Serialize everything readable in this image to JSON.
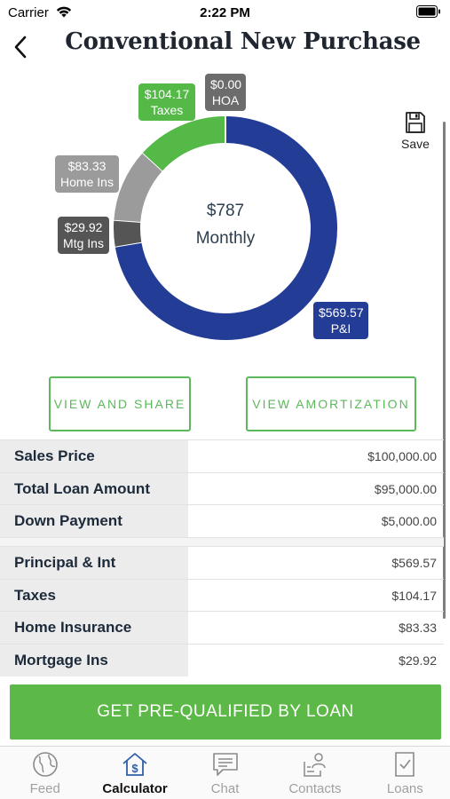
{
  "status_bar": {
    "carrier": "Carrier",
    "time": "2:22 PM"
  },
  "header": {
    "title": "Conventional New Purchase"
  },
  "chart_data": {
    "type": "pie",
    "categories": [
      "P&I",
      "Mtg Ins",
      "Home Ins",
      "Taxes",
      "HOA"
    ],
    "values": [
      569.57,
      29.92,
      83.33,
      104.17,
      0.0
    ],
    "colors": [
      "#233c96",
      "#555555",
      "#9b9b9b",
      "#55b948",
      "#6c6c6c"
    ],
    "center": {
      "amount": "$787",
      "label": "Monthly"
    }
  },
  "callouts": {
    "taxes": {
      "value": "$104.17",
      "label": "Taxes"
    },
    "hoa": {
      "value": "$0.00",
      "label": "HOA"
    },
    "home_ins": {
      "value": "$83.33",
      "label": "Home Ins"
    },
    "mtg_ins": {
      "value": "$29.92",
      "label": "Mtg Ins"
    },
    "pi": {
      "value": "$569.57",
      "label": "P&I"
    }
  },
  "save": {
    "label": "Save",
    "icon": "floppy-disk-icon"
  },
  "buttons": {
    "share": "VIEW AND SHARE",
    "amortization": "VIEW AMORTIZATION"
  },
  "loan_summary": [
    {
      "label": "Sales Price",
      "value": "$100,000.00"
    },
    {
      "label": "Total Loan Amount",
      "value": "$95,000.00"
    },
    {
      "label": "Down Payment",
      "value": "$5,000.00"
    }
  ],
  "payment_breakdown": [
    {
      "label": "Principal & Int",
      "value": "$569.57"
    },
    {
      "label": "Taxes",
      "value": "$104.17"
    },
    {
      "label": "Home Insurance",
      "value": "$83.33"
    },
    {
      "label": "Mortgage Ins",
      "value": "$29.92"
    }
  ],
  "cta": {
    "label": "GET PRE-QUALIFIED BY LOAN"
  },
  "tabs": [
    {
      "label": "Feed",
      "icon": "globe-icon"
    },
    {
      "label": "Calculator",
      "icon": "home-dollar-icon",
      "active": true
    },
    {
      "label": "Chat",
      "icon": "chat-icon"
    },
    {
      "label": "Contacts",
      "icon": "contacts-icon"
    },
    {
      "label": "Loans",
      "icon": "document-check-icon"
    }
  ]
}
